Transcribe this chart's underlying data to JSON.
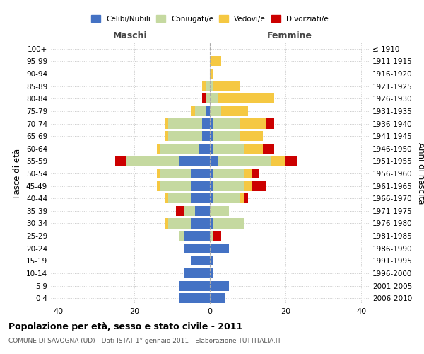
{
  "age_groups": [
    "100+",
    "95-99",
    "90-94",
    "85-89",
    "80-84",
    "75-79",
    "70-74",
    "65-69",
    "60-64",
    "55-59",
    "50-54",
    "45-49",
    "40-44",
    "35-39",
    "30-34",
    "25-29",
    "20-24",
    "15-19",
    "10-14",
    "5-9",
    "0-4"
  ],
  "birth_years": [
    "≤ 1910",
    "1911-1915",
    "1916-1920",
    "1921-1925",
    "1926-1930",
    "1931-1935",
    "1936-1940",
    "1941-1945",
    "1946-1950",
    "1951-1955",
    "1956-1960",
    "1961-1965",
    "1966-1970",
    "1971-1975",
    "1976-1980",
    "1981-1985",
    "1986-1990",
    "1991-1995",
    "1996-2000",
    "2001-2005",
    "2006-2010"
  ],
  "colors": {
    "celibi": "#4472c4",
    "coniugati": "#c5d9a0",
    "vedovi": "#f5c842",
    "divorziati": "#cc0000"
  },
  "males": {
    "celibi": [
      0,
      0,
      0,
      0,
      0,
      1,
      2,
      2,
      3,
      8,
      5,
      5,
      5,
      4,
      5,
      7,
      7,
      5,
      7,
      8,
      8
    ],
    "coniugati": [
      0,
      0,
      0,
      1,
      1,
      3,
      9,
      9,
      10,
      14,
      8,
      8,
      6,
      3,
      6,
      1,
      0,
      0,
      0,
      0,
      0
    ],
    "vedovi": [
      0,
      0,
      0,
      1,
      0,
      1,
      1,
      1,
      1,
      0,
      1,
      1,
      1,
      0,
      1,
      0,
      0,
      0,
      0,
      0,
      0
    ],
    "divorziati": [
      0,
      0,
      0,
      0,
      1,
      0,
      0,
      0,
      0,
      3,
      0,
      0,
      0,
      2,
      0,
      0,
      0,
      0,
      0,
      0,
      0
    ]
  },
  "females": {
    "nubili": [
      0,
      0,
      0,
      0,
      0,
      0,
      1,
      1,
      1,
      2,
      1,
      1,
      1,
      0,
      1,
      0,
      5,
      1,
      1,
      5,
      4
    ],
    "coniugate": [
      0,
      0,
      0,
      1,
      2,
      3,
      7,
      7,
      8,
      14,
      8,
      8,
      7,
      5,
      8,
      1,
      0,
      0,
      0,
      0,
      0
    ],
    "vedove": [
      0,
      3,
      1,
      7,
      15,
      7,
      7,
      6,
      5,
      4,
      2,
      2,
      1,
      0,
      0,
      0,
      0,
      0,
      0,
      0,
      0
    ],
    "divorziate": [
      0,
      0,
      0,
      0,
      0,
      0,
      2,
      0,
      3,
      3,
      2,
      4,
      1,
      0,
      0,
      2,
      0,
      0,
      0,
      0,
      0
    ]
  },
  "xlim": [
    -42,
    42
  ],
  "xticks": [
    -40,
    -20,
    0,
    20,
    40
  ],
  "xticklabels": [
    "40",
    "20",
    "0",
    "20",
    "40"
  ],
  "title": "Popolazione per età, sesso e stato civile - 2011",
  "subtitle": "COMUNE DI SAVOGNA (UD) - Dati ISTAT 1° gennaio 2011 - Elaborazione TUTTITALIA.IT",
  "ylabel_left": "Fasce di età",
  "ylabel_right": "Anni di nascita",
  "label_maschi": "Maschi",
  "label_femmine": "Femmine",
  "legend_labels": [
    "Celibi/Nubili",
    "Coniugati/e",
    "Vedovi/e",
    "Divorziati/e"
  ],
  "bg_color": "#ffffff",
  "grid_color": "#cccccc",
  "bar_height": 0.8
}
